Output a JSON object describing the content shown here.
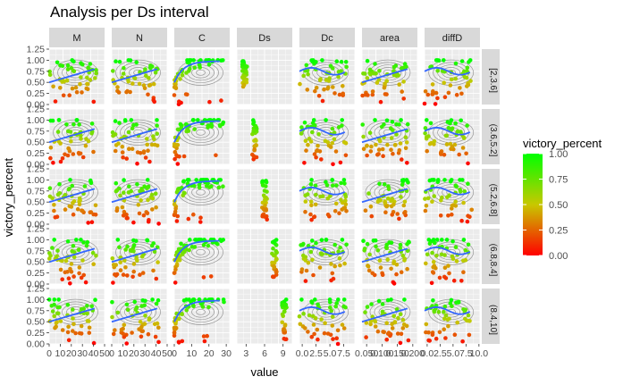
{
  "chart_data": {
    "type": "scatter",
    "title": "Analysis per Ds interval",
    "xlabel": "value",
    "ylabel": "victory_percent",
    "facet_cols": [
      "M",
      "N",
      "C",
      "Ds",
      "Dc",
      "area",
      "diffD"
    ],
    "facet_rows": [
      "[2,3.6]",
      "(3.6,5.2]",
      "(5.2,6.8]",
      "(6.8,8.4]",
      "(8.4,10]"
    ],
    "ylim": [
      0,
      1.25
    ],
    "y_ticks": [
      "0.00",
      "0.25",
      "0.50",
      "0.75",
      "1.00",
      "1.25"
    ],
    "x_tick_labels": [
      [
        "0",
        "10",
        "20",
        "30",
        "40",
        "50"
      ],
      [
        "0",
        "10",
        "20",
        "30",
        "40",
        "50"
      ],
      [
        "0",
        "10",
        "20",
        "30"
      ],
      [
        "3",
        "6",
        "9"
      ],
      [
        "0.0",
        "2.5",
        "5.0",
        "7.5"
      ],
      [
        "0.050",
        "0.100",
        "0.150",
        "0.200"
      ],
      [
        "0.0",
        "2.5",
        "5.0",
        "7.5",
        "10.0"
      ]
    ],
    "x_ranges": [
      [
        0,
        50
      ],
      [
        0,
        50
      ],
      [
        0,
        32
      ],
      [
        1.5,
        10.5
      ],
      [
        -0.5,
        9.5
      ],
      [
        0.035,
        0.215
      ],
      [
        -0.5,
        10.2
      ]
    ],
    "legend": {
      "title": "victory_percent",
      "position": "right",
      "ticks": [
        "1.00",
        "0.75",
        "0.50",
        "0.25",
        "0.00"
      ],
      "color_low": "#ff0000",
      "color_mid": "#c8c800",
      "color_high": "#00ff00"
    },
    "trend_color": "#3366ff",
    "contour_color": "#808080",
    "panel_background": "#ebebeb",
    "strip_background": "#d9d9d9",
    "grid": true
  }
}
